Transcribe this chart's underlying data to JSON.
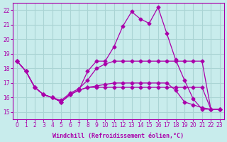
{
  "xlabel": "Windchill (Refroidissement éolien,°C)",
  "background_color": "#c8ecec",
  "grid_color": "#aad4d4",
  "line_color": "#aa00aa",
  "ylim": [
    14.5,
    22.5
  ],
  "xlim": [
    -0.5,
    23.5
  ],
  "yticks": [
    15,
    16,
    17,
    18,
    19,
    20,
    21,
    22
  ],
  "xticks": [
    0,
    1,
    2,
    3,
    4,
    5,
    6,
    7,
    8,
    9,
    10,
    11,
    12,
    13,
    14,
    15,
    16,
    17,
    18,
    19,
    20,
    21,
    22,
    23
  ],
  "series": [
    {
      "x": [
        0,
        1,
        2,
        3,
        4,
        5,
        6,
        7,
        8,
        9,
        10,
        11,
        12,
        13,
        14,
        15,
        16,
        17,
        18,
        19,
        20,
        21,
        22,
        23
      ],
      "y": [
        18.5,
        17.8,
        16.7,
        16.2,
        16.0,
        15.7,
        16.2,
        16.5,
        17.8,
        18.5,
        18.5,
        19.5,
        20.9,
        21.9,
        21.4,
        21.1,
        22.2,
        20.4,
        18.6,
        17.2,
        15.9,
        15.2,
        15.2,
        15.2
      ]
    },
    {
      "x": [
        0,
        1,
        2,
        3,
        4,
        5,
        6,
        7,
        8,
        9,
        10,
        11,
        12,
        13,
        14,
        15,
        16,
        17,
        18,
        19,
        20,
        21,
        22,
        23
      ],
      "y": [
        18.5,
        17.8,
        16.7,
        16.2,
        16.0,
        15.8,
        16.3,
        16.6,
        17.2,
        18.0,
        18.3,
        18.5,
        18.5,
        18.5,
        18.5,
        18.5,
        18.5,
        18.5,
        18.5,
        18.5,
        18.5,
        18.5,
        15.2,
        15.2
      ]
    },
    {
      "x": [
        0,
        1,
        2,
        3,
        4,
        5,
        6,
        7,
        8,
        9,
        10,
        11,
        12,
        13,
        14,
        15,
        16,
        17,
        18,
        19,
        20,
        21,
        22,
        23
      ],
      "y": [
        18.5,
        17.8,
        16.7,
        16.2,
        16.0,
        15.7,
        16.2,
        16.5,
        16.7,
        16.7,
        16.7,
        16.7,
        16.7,
        16.7,
        16.7,
        16.7,
        16.7,
        16.7,
        16.7,
        16.7,
        16.7,
        16.7,
        15.2,
        15.2
      ]
    },
    {
      "x": [
        0,
        1,
        2,
        3,
        4,
        5,
        6,
        7,
        8,
        9,
        10,
        11,
        12,
        13,
        14,
        15,
        16,
        17,
        18,
        19,
        20,
        21,
        22,
        23
      ],
      "y": [
        18.5,
        17.8,
        16.7,
        16.2,
        16.0,
        15.7,
        16.2,
        16.5,
        16.7,
        16.8,
        16.9,
        17.0,
        17.0,
        17.0,
        17.0,
        17.0,
        17.0,
        17.0,
        16.5,
        15.7,
        15.5,
        15.3,
        15.2,
        15.2
      ]
    }
  ]
}
